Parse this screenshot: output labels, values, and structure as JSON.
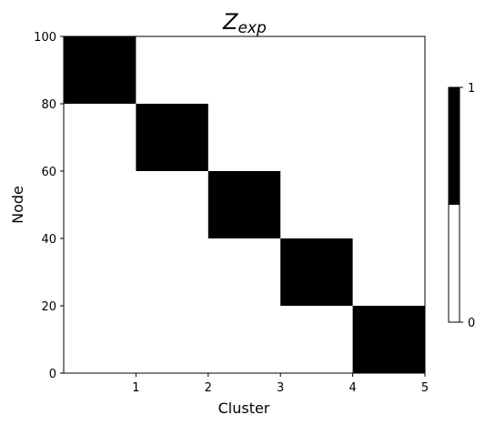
{
  "chart_data": {
    "type": "heatmap",
    "title": {
      "base": "Z",
      "subscript": "exp"
    },
    "xlabel": "Cluster",
    "ylabel": "Node",
    "xlim": [
      0,
      5
    ],
    "ylim": [
      0,
      100
    ],
    "xticks": [
      "1",
      "2",
      "3",
      "4",
      "5"
    ],
    "yticks": [
      "0",
      "20",
      "40",
      "60",
      "80",
      "100"
    ],
    "grid": false,
    "cells": [
      {
        "cluster": 1,
        "node_start": 80,
        "node_end": 100,
        "value": 1
      },
      {
        "cluster": 2,
        "node_start": 60,
        "node_end": 80,
        "value": 1
      },
      {
        "cluster": 3,
        "node_start": 40,
        "node_end": 60,
        "value": 1
      },
      {
        "cluster": 4,
        "node_start": 20,
        "node_end": 40,
        "value": 1
      },
      {
        "cluster": 5,
        "node_start": 0,
        "node_end": 20,
        "value": 1
      }
    ],
    "background_value": 0,
    "colormap": {
      "0": "#ffffff",
      "1": "#000000"
    },
    "colorbar": {
      "ticks": [
        "0",
        "1"
      ],
      "placement": "right"
    }
  }
}
